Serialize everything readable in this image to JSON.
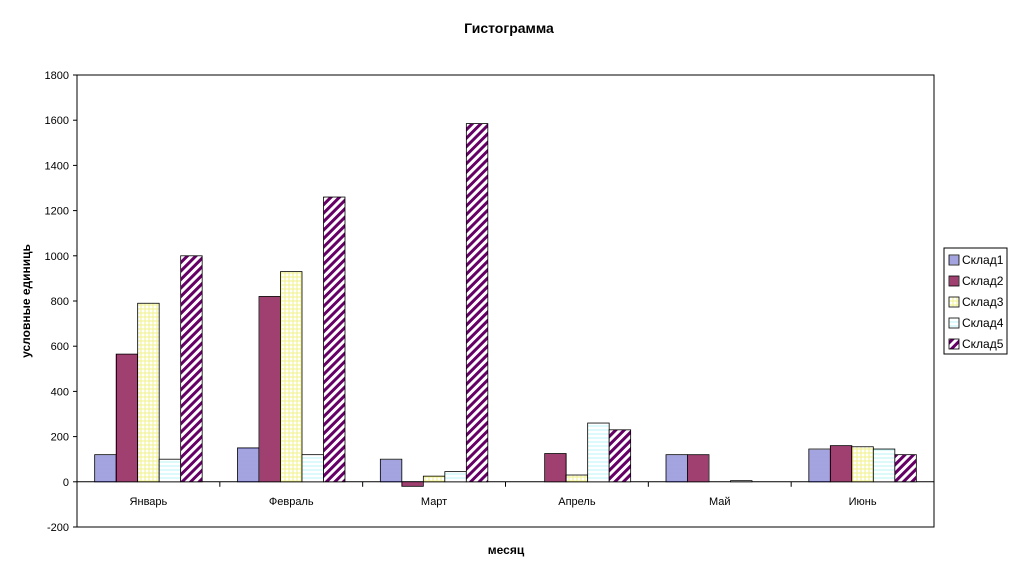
{
  "chart_data": {
    "type": "bar",
    "title": "Гистограмма",
    "xlabel": "месяц",
    "ylabel": "условные единиць",
    "categories": [
      "Январь",
      "Февраль",
      "Март",
      "Апрель",
      "Май",
      "Июнь"
    ],
    "ylim": [
      -200,
      1800
    ],
    "yticks": [
      -200,
      0,
      200,
      400,
      600,
      800,
      1000,
      1200,
      1400,
      1600,
      1800
    ],
    "grid": false,
    "legend_position": "right",
    "series": [
      {
        "name": "Склад1",
        "pattern": "horizontal-lines",
        "color": "#6666cc",
        "values": [
          120,
          150,
          100,
          0,
          120,
          145
        ]
      },
      {
        "name": "Склад2",
        "pattern": "vertical-lines",
        "color": "#800040",
        "values": [
          565,
          820,
          -20,
          125,
          120,
          160
        ]
      },
      {
        "name": "Склад3",
        "pattern": "light-grid",
        "color": "#ffff99",
        "values": [
          790,
          930,
          25,
          30,
          0,
          155
        ]
      },
      {
        "name": "Склад4",
        "pattern": "light-fill",
        "color": "#99ffff",
        "values": [
          100,
          120,
          45,
          260,
          5,
          145
        ]
      },
      {
        "name": "Склад5",
        "pattern": "diagonal-stripes",
        "color": "#660066",
        "values": [
          1000,
          1260,
          1585,
          230,
          0,
          120
        ]
      }
    ]
  }
}
